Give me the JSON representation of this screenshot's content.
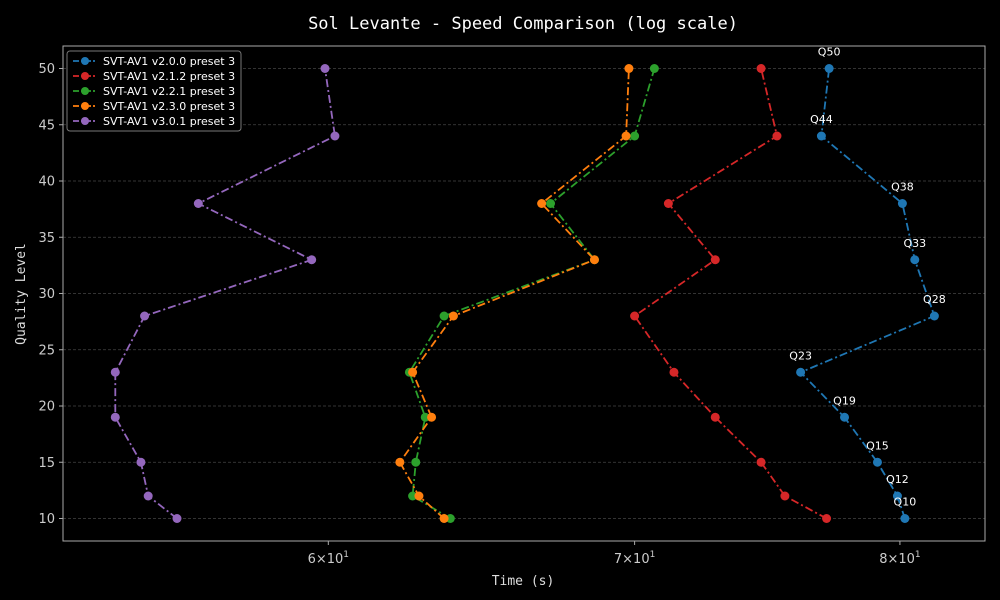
{
  "chart_data": {
    "type": "line",
    "title": "Sol Levante - Speed Comparison (log scale)",
    "xlabel": "Time (s)",
    "ylabel": "Quality Level",
    "xscale": "log",
    "xlim": [
      52.5,
      83.5
    ],
    "ylim": [
      8,
      52
    ],
    "x_ticks": [
      {
        "value": 60,
        "base": "6",
        "exp": "1"
      },
      {
        "value": 70,
        "base": "7",
        "exp": "1"
      },
      {
        "value": 80,
        "base": "8",
        "exp": "1"
      }
    ],
    "x_tick_times": "×10",
    "y_ticks": [
      "10",
      "15",
      "20",
      "25",
      "30",
      "35",
      "40",
      "45",
      "50"
    ],
    "grid": true,
    "legend_position": "top-left",
    "series": [
      {
        "name": "SVT-AV1 v2.0.0 preset 3",
        "color": "#1f77b4",
        "y": [
          10,
          12,
          15,
          19,
          23,
          28,
          33,
          38,
          44,
          50
        ],
        "x": [
          80.2,
          79.9,
          79.1,
          77.8,
          76.1,
          81.4,
          80.6,
          80.1,
          76.9,
          77.2
        ]
      },
      {
        "name": "SVT-AV1 v2.1.2 preset 3",
        "color": "#d62728",
        "y": [
          10,
          12,
          15,
          19,
          23,
          28,
          33,
          38,
          44,
          50
        ],
        "x": [
          77.1,
          75.5,
          74.6,
          72.9,
          71.4,
          70.0,
          72.9,
          71.2,
          75.2,
          74.6
        ]
      },
      {
        "name": "SVT-AV1 v2.2.1 preset 3",
        "color": "#2ca02c",
        "y": [
          10,
          12,
          15,
          19,
          23,
          28,
          33,
          38,
          44,
          50
        ],
        "x": [
          63.8,
          62.6,
          62.7,
          63.0,
          62.5,
          63.6,
          68.6,
          67.1,
          70.0,
          70.7
        ]
      },
      {
        "name": "SVT-AV1 v2.3.0 preset 3",
        "color": "#ff7f0e",
        "y": [
          10,
          12,
          15,
          19,
          23,
          28,
          33,
          38,
          44,
          50
        ],
        "x": [
          63.6,
          62.8,
          62.2,
          63.2,
          62.6,
          63.9,
          68.6,
          66.8,
          69.7,
          69.8
        ]
      },
      {
        "name": "SVT-AV1 v3.0.1 preset 3",
        "color": "#9467bd",
        "y": [
          10,
          12,
          15,
          19,
          23,
          28,
          33,
          38,
          44,
          50
        ],
        "x": [
          55.6,
          54.8,
          54.6,
          53.9,
          53.9,
          54.7,
          59.5,
          56.2,
          60.2,
          59.9
        ]
      }
    ],
    "annotations": [
      {
        "text": "Q10",
        "x": 80.2,
        "y": 10
      },
      {
        "text": "Q12",
        "x": 79.9,
        "y": 12
      },
      {
        "text": "Q15",
        "x": 79.1,
        "y": 15
      },
      {
        "text": "Q19",
        "x": 77.8,
        "y": 19
      },
      {
        "text": "Q23",
        "x": 76.1,
        "y": 23
      },
      {
        "text": "Q28",
        "x": 81.4,
        "y": 28
      },
      {
        "text": "Q33",
        "x": 80.6,
        "y": 33
      },
      {
        "text": "Q38",
        "x": 80.1,
        "y": 38
      },
      {
        "text": "Q44",
        "x": 76.9,
        "y": 44
      },
      {
        "text": "Q50",
        "x": 77.2,
        "y": 50
      }
    ]
  }
}
